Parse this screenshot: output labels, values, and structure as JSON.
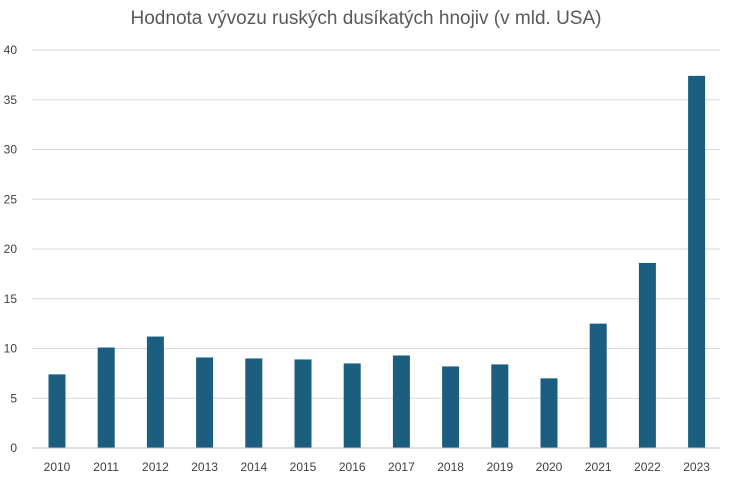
{
  "chart_data": {
    "type": "bar",
    "title": "Hodnota vývozu ruských dusíkatých hnojiv (v mld. USA)",
    "xlabel": "",
    "ylabel": "",
    "categories": [
      "2010",
      "2011",
      "2012",
      "2013",
      "2014",
      "2015",
      "2016",
      "2017",
      "2018",
      "2019",
      "2020",
      "2021",
      "2022",
      "2023"
    ],
    "values": [
      7.4,
      10.1,
      11.2,
      9.1,
      9.0,
      8.9,
      8.5,
      9.3,
      8.2,
      8.4,
      7.0,
      12.5,
      18.6,
      37.4
    ],
    "ylim": [
      0,
      40
    ],
    "yticks": [
      0,
      5,
      10,
      15,
      20,
      25,
      30,
      35,
      40
    ],
    "grid": true,
    "bar_color": "#1b5e80"
  }
}
